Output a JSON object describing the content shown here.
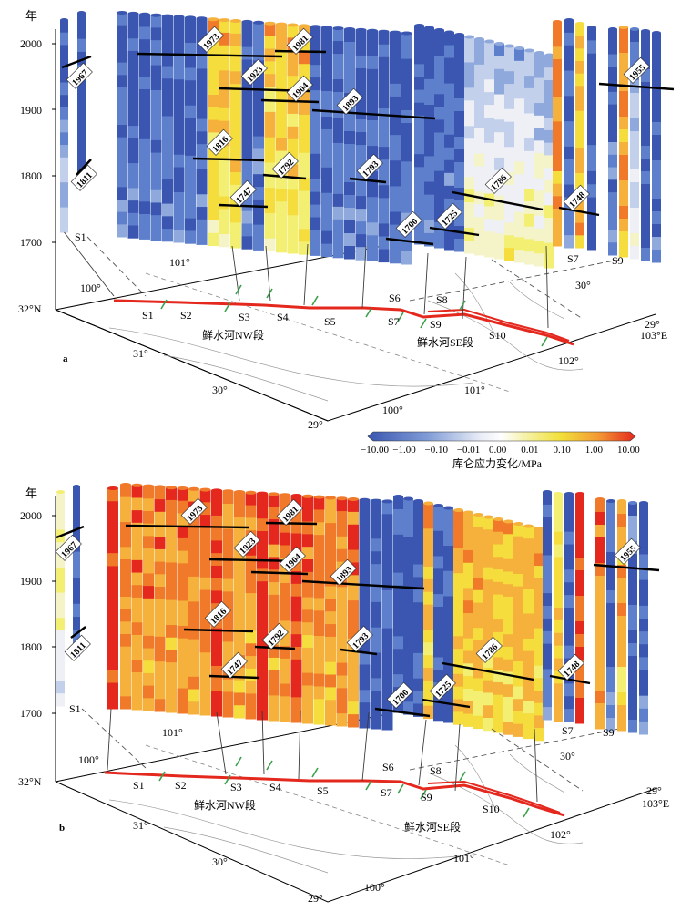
{
  "colors": {
    "scale": [
      "#3a56b0",
      "#5d7fcc",
      "#8fa9dc",
      "#c3d0ec",
      "#eef0f6",
      "#f4f4c8",
      "#f2ef72",
      "#f4dd3c",
      "#f5b13c",
      "#f07a2a",
      "#e4281e"
    ],
    "fault": "#e4281e",
    "leader": "#3a3a3a",
    "event": "#000000",
    "river": "#9a9a9a",
    "tick": "#3aa04a"
  },
  "icons": {
    "tick": "green-dash-marker",
    "fault": "red-fault-trace"
  },
  "y_axis": {
    "label": "年",
    "ticks": [
      "2000",
      "1900",
      "1800",
      "1700"
    ]
  },
  "colorbar": {
    "ticks": [
      "−10.00",
      "−1.00",
      "−0.10",
      "−0.01",
      "0.00",
      "0.01",
      "0.10",
      "1.00",
      "10.00"
    ],
    "label": "库仑应力变化/MPa"
  },
  "segments": [
    "S1",
    "S2",
    "S3",
    "S4",
    "S5",
    "S6",
    "S7",
    "S8",
    "S9",
    "S10"
  ],
  "fault_labels": {
    "nw": "鲜水河NW段",
    "se": "鲜水河SE段"
  },
  "grid_labels": {
    "lat": [
      "32°N",
      "31°",
      "30°",
      "29°",
      "29°",
      "30°"
    ],
    "lon": [
      "100°",
      "101°",
      "102°",
      "103°E",
      "100°",
      "101°"
    ]
  },
  "events": [
    "1967",
    "1811",
    "1973",
    "1981",
    "1923",
    "1904",
    "1893",
    "1816",
    "1792",
    "1793",
    "1747",
    "1786",
    "1748",
    "1700",
    "1725",
    "1955"
  ],
  "panel_letters": [
    "a",
    "b"
  ],
  "panel_a": {
    "letter": "a",
    "wall_labels": [
      "S1",
      "S7",
      "S9"
    ]
  },
  "panel_b": {
    "letter": "b",
    "wall_labels": [
      "S1",
      "S7",
      "S9"
    ]
  }
}
